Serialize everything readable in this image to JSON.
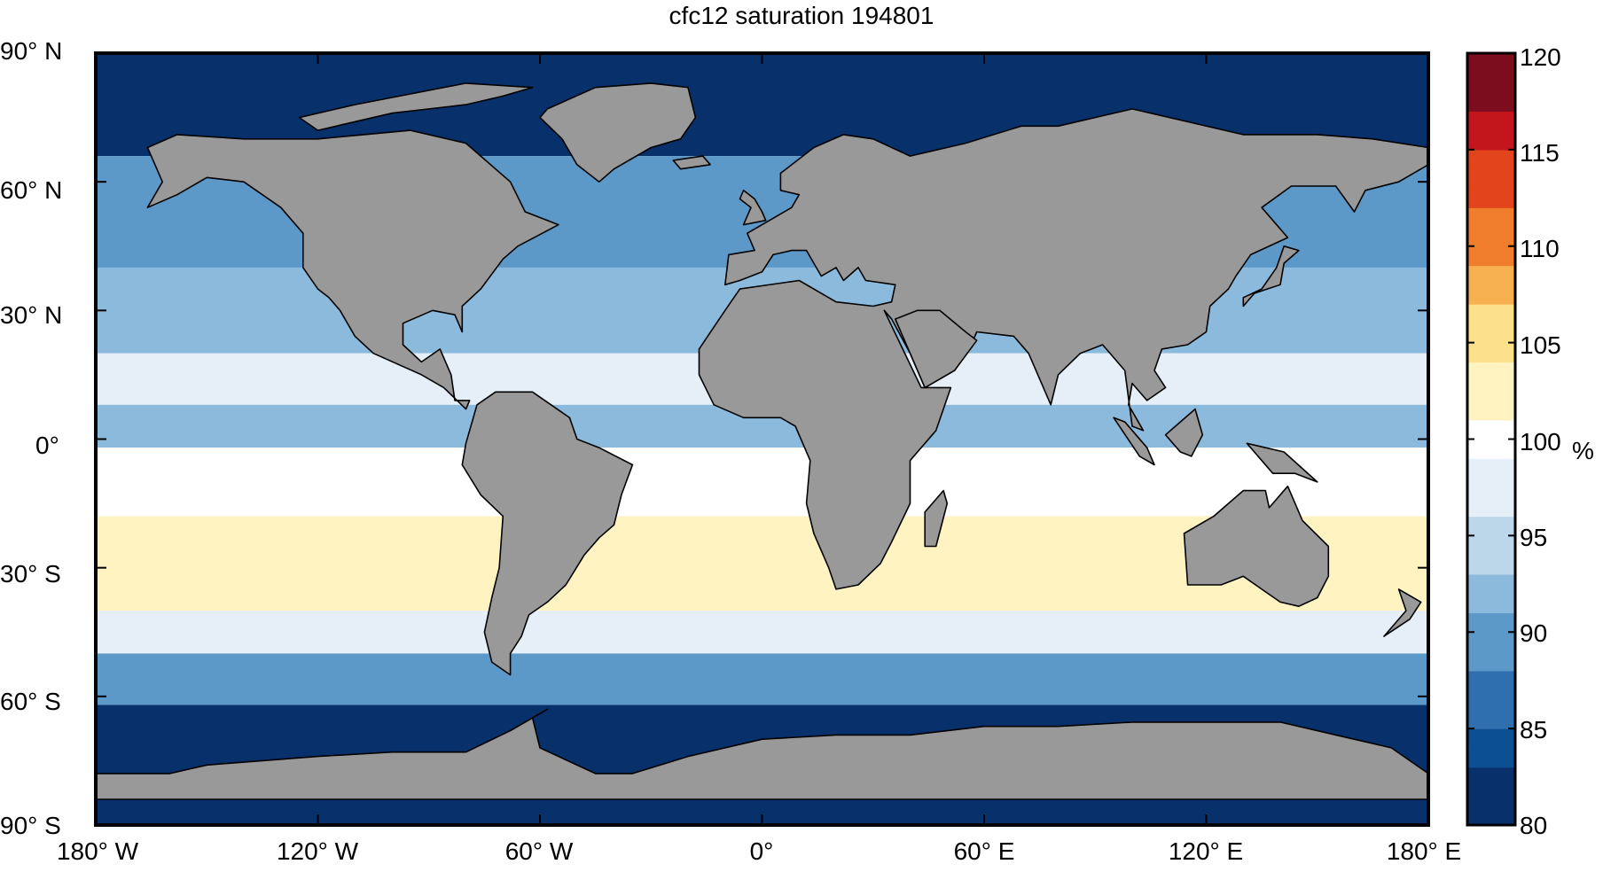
{
  "title": "cfc12 saturation 194801",
  "colorbar": {
    "min": 80,
    "max": 120,
    "step": 1,
    "tick_labels": [
      "120",
      "115",
      "110",
      "105",
      "100",
      "95",
      "90",
      "85",
      "80"
    ],
    "unit": "%",
    "colors_low_to_high": [
      "#08306b",
      "#0d4f93",
      "#2f6fb0",
      "#5c98c8",
      "#8cbadc",
      "#bcd6ea",
      "#e6eff7",
      "#ffffff",
      "#fff3c2",
      "#fde08a",
      "#f7b04f",
      "#ef7d2b",
      "#e2441b",
      "#c2151c",
      "#7b0d1e"
    ]
  },
  "axes": {
    "lat_labels": [
      "90° N",
      "60° N",
      "30° N",
      "0°",
      "30° S",
      "60° S",
      "90° S"
    ],
    "lon_labels": [
      "180° W",
      "120° W",
      "60° W",
      "0°",
      "60° E",
      "120° E",
      "180° E"
    ]
  },
  "map": {
    "land_color": "#999999",
    "ocean_bands": [
      {
        "lat_top": 90,
        "lat_bottom": 66,
        "value": 80
      },
      {
        "lat_top": 66,
        "lat_bottom": 40,
        "value": 90
      },
      {
        "lat_top": 40,
        "lat_bottom": 20,
        "value": 93
      },
      {
        "lat_top": 20,
        "lat_bottom": 8,
        "value": 98
      },
      {
        "lat_top": 8,
        "lat_bottom": -2,
        "value": 92
      },
      {
        "lat_top": -2,
        "lat_bottom": -18,
        "value": 99
      },
      {
        "lat_top": -18,
        "lat_bottom": -40,
        "value": 103
      },
      {
        "lat_top": -40,
        "lat_bottom": -50,
        "value": 96
      },
      {
        "lat_top": -50,
        "lat_bottom": -62,
        "value": 89
      },
      {
        "lat_top": -62,
        "lat_bottom": -90,
        "value": 80
      }
    ],
    "land": [
      {
        "name": "north-america",
        "lonlat": [
          [
            -166,
            68
          ],
          [
            -158,
            71
          ],
          [
            -140,
            70
          ],
          [
            -120,
            70
          ],
          [
            -95,
            72
          ],
          [
            -80,
            69
          ],
          [
            -68,
            60
          ],
          [
            -64,
            53
          ],
          [
            -55,
            50
          ],
          [
            -66,
            45
          ],
          [
            -70,
            42
          ],
          [
            -76,
            35
          ],
          [
            -81,
            31
          ],
          [
            -81,
            25
          ],
          [
            -83,
            29
          ],
          [
            -89,
            30
          ],
          [
            -97,
            27
          ],
          [
            -97,
            22
          ],
          [
            -92,
            18
          ],
          [
            -87,
            21
          ],
          [
            -84,
            15
          ],
          [
            -83,
            9
          ],
          [
            -79,
            9
          ],
          [
            -80,
            7
          ],
          [
            -86,
            12
          ],
          [
            -92,
            15
          ],
          [
            -105,
            20
          ],
          [
            -110,
            24
          ],
          [
            -114,
            30
          ],
          [
            -117,
            33
          ],
          [
            -120,
            35
          ],
          [
            -124,
            40
          ],
          [
            -124,
            48
          ],
          [
            -130,
            54
          ],
          [
            -140,
            60
          ],
          [
            -150,
            61
          ],
          [
            -158,
            57
          ],
          [
            -166,
            54
          ],
          [
            -162,
            60
          ],
          [
            -166,
            68
          ]
        ]
      },
      {
        "name": "greenland",
        "lonlat": [
          [
            -58,
            77
          ],
          [
            -45,
            82
          ],
          [
            -30,
            83
          ],
          [
            -20,
            82
          ],
          [
            -18,
            75
          ],
          [
            -22,
            70
          ],
          [
            -30,
            68
          ],
          [
            -40,
            63
          ],
          [
            -44,
            60
          ],
          [
            -50,
            64
          ],
          [
            -54,
            70
          ],
          [
            -60,
            75
          ],
          [
            -58,
            77
          ]
        ]
      },
      {
        "name": "south-america",
        "lonlat": [
          [
            -77,
            8
          ],
          [
            -72,
            11
          ],
          [
            -62,
            11
          ],
          [
            -52,
            5
          ],
          [
            -50,
            0
          ],
          [
            -44,
            -2
          ],
          [
            -35,
            -6
          ],
          [
            -38,
            -13
          ],
          [
            -40,
            -20
          ],
          [
            -44,
            -23
          ],
          [
            -48,
            -27
          ],
          [
            -53,
            -34
          ],
          [
            -58,
            -38
          ],
          [
            -63,
            -41
          ],
          [
            -65,
            -46
          ],
          [
            -68,
            -50
          ],
          [
            -68,
            -55
          ],
          [
            -73,
            -52
          ],
          [
            -75,
            -45
          ],
          [
            -73,
            -37
          ],
          [
            -71,
            -30
          ],
          [
            -70,
            -18
          ],
          [
            -76,
            -13
          ],
          [
            -81,
            -6
          ],
          [
            -80,
            -1
          ],
          [
            -77,
            8
          ]
        ]
      },
      {
        "name": "eurasia-africa",
        "lonlat": [
          [
            -10,
            36
          ],
          [
            -9,
            43
          ],
          [
            -2,
            44
          ],
          [
            -4,
            48
          ],
          [
            2,
            51
          ],
          [
            8,
            54
          ],
          [
            10,
            57
          ],
          [
            5,
            58
          ],
          [
            5,
            62
          ],
          [
            14,
            68
          ],
          [
            22,
            71
          ],
          [
            30,
            70
          ],
          [
            40,
            66
          ],
          [
            55,
            69
          ],
          [
            70,
            73
          ],
          [
            80,
            73
          ],
          [
            100,
            77
          ],
          [
            115,
            74
          ],
          [
            130,
            71
          ],
          [
            150,
            71
          ],
          [
            165,
            70
          ],
          [
            180,
            68
          ],
          [
            180,
            64
          ],
          [
            172,
            60
          ],
          [
            163,
            58
          ],
          [
            160,
            53
          ],
          [
            155,
            59
          ],
          [
            143,
            59
          ],
          [
            135,
            54
          ],
          [
            142,
            47
          ],
          [
            132,
            43
          ],
          [
            128,
            38
          ],
          [
            126,
            35
          ],
          [
            121,
            31
          ],
          [
            120,
            25
          ],
          [
            115,
            22
          ],
          [
            108,
            21
          ],
          [
            106,
            16
          ],
          [
            109,
            12
          ],
          [
            104,
            9
          ],
          [
            100,
            13
          ],
          [
            99,
            8
          ],
          [
            103,
            2
          ],
          [
            100,
            3
          ],
          [
            98,
            16
          ],
          [
            92,
            22
          ],
          [
            86,
            20
          ],
          [
            80,
            15
          ],
          [
            78,
            8
          ],
          [
            72,
            20
          ],
          [
            68,
            24
          ],
          [
            58,
            25
          ],
          [
            56,
            21
          ],
          [
            52,
            16
          ],
          [
            44,
            12
          ],
          [
            40,
            20
          ],
          [
            35,
            28
          ],
          [
            33,
            30
          ],
          [
            43,
            12
          ],
          [
            51,
            12
          ],
          [
            47,
            2
          ],
          [
            40,
            -5
          ],
          [
            40,
            -15
          ],
          [
            35,
            -24
          ],
          [
            32,
            -29
          ],
          [
            26,
            -34
          ],
          [
            20,
            -35
          ],
          [
            18,
            -30
          ],
          [
            14,
            -22
          ],
          [
            12,
            -15
          ],
          [
            13,
            -5
          ],
          [
            9,
            3
          ],
          [
            5,
            5
          ],
          [
            -5,
            5
          ],
          [
            -13,
            8
          ],
          [
            -17,
            15
          ],
          [
            -17,
            21
          ],
          [
            -10,
            30
          ],
          [
            -6,
            35
          ],
          [
            10,
            37
          ],
          [
            20,
            32
          ],
          [
            30,
            31
          ],
          [
            35,
            32
          ],
          [
            36,
            36
          ],
          [
            28,
            37
          ],
          [
            26,
            40
          ],
          [
            22,
            37
          ],
          [
            20,
            40
          ],
          [
            16,
            38
          ],
          [
            12,
            44
          ],
          [
            8,
            44
          ],
          [
            3,
            43
          ],
          [
            0,
            39
          ],
          [
            -6,
            37
          ],
          [
            -10,
            36
          ]
        ]
      },
      {
        "name": "arabian-sea-gap",
        "lonlat": [
          [
            42,
            30
          ],
          [
            48,
            30
          ],
          [
            55,
            25
          ],
          [
            58,
            23
          ],
          [
            52,
            16
          ],
          [
            44,
            12
          ],
          [
            40,
            20
          ],
          [
            36,
            28
          ],
          [
            42,
            30
          ]
        ]
      },
      {
        "name": "australia",
        "lonlat": [
          [
            114,
            -22
          ],
          [
            122,
            -18
          ],
          [
            130,
            -12
          ],
          [
            136,
            -12
          ],
          [
            137,
            -16
          ],
          [
            142,
            -11
          ],
          [
            146,
            -19
          ],
          [
            153,
            -25
          ],
          [
            153,
            -32
          ],
          [
            150,
            -37
          ],
          [
            145,
            -39
          ],
          [
            140,
            -38
          ],
          [
            135,
            -35
          ],
          [
            130,
            -32
          ],
          [
            124,
            -34
          ],
          [
            115,
            -34
          ],
          [
            114,
            -22
          ]
        ]
      },
      {
        "name": "antarctica",
        "lonlat": [
          [
            -180,
            -84
          ],
          [
            -180,
            -78
          ],
          [
            -160,
            -78
          ],
          [
            -150,
            -76
          ],
          [
            -120,
            -74
          ],
          [
            -100,
            -73
          ],
          [
            -80,
            -73
          ],
          [
            -68,
            -68
          ],
          [
            -58,
            -63
          ],
          [
            -62,
            -65
          ],
          [
            -60,
            -72
          ],
          [
            -45,
            -78
          ],
          [
            -35,
            -78
          ],
          [
            -20,
            -74
          ],
          [
            0,
            -70
          ],
          [
            20,
            -69
          ],
          [
            40,
            -69
          ],
          [
            60,
            -67
          ],
          [
            80,
            -67
          ],
          [
            100,
            -66
          ],
          [
            120,
            -66
          ],
          [
            140,
            -66
          ],
          [
            160,
            -70
          ],
          [
            170,
            -72
          ],
          [
            180,
            -78
          ],
          [
            180,
            -84
          ],
          [
            -180,
            -84
          ]
        ]
      },
      {
        "name": "madagascar",
        "lonlat": [
          [
            44,
            -25
          ],
          [
            47,
            -25
          ],
          [
            50,
            -15
          ],
          [
            49,
            -12
          ],
          [
            44,
            -17
          ],
          [
            44,
            -25
          ]
        ]
      },
      {
        "name": "borneo",
        "lonlat": [
          [
            109,
            1
          ],
          [
            113,
            -3
          ],
          [
            116,
            -4
          ],
          [
            119,
            1
          ],
          [
            117,
            7
          ],
          [
            113,
            4
          ],
          [
            109,
            1
          ]
        ]
      },
      {
        "name": "sumatra",
        "lonlat": [
          [
            95,
            5
          ],
          [
            98,
            4
          ],
          [
            104,
            -2
          ],
          [
            106,
            -6
          ],
          [
            102,
            -4
          ],
          [
            95,
            5
          ]
        ]
      },
      {
        "name": "new-guinea",
        "lonlat": [
          [
            131,
            -1
          ],
          [
            141,
            -3
          ],
          [
            150,
            -10
          ],
          [
            144,
            -8
          ],
          [
            138,
            -8
          ],
          [
            131,
            -1
          ]
        ]
      },
      {
        "name": "japan",
        "lonlat": [
          [
            130,
            31
          ],
          [
            133,
            34
          ],
          [
            140,
            36
          ],
          [
            141,
            41
          ],
          [
            145,
            44
          ],
          [
            141,
            45
          ],
          [
            139,
            40
          ],
          [
            135,
            35
          ],
          [
            130,
            33
          ],
          [
            130,
            31
          ]
        ]
      },
      {
        "name": "great-britain",
        "lonlat": [
          [
            -5,
            50
          ],
          [
            1,
            51
          ],
          [
            0,
            53
          ],
          [
            -2,
            56
          ],
          [
            -5,
            58
          ],
          [
            -6,
            56
          ],
          [
            -3,
            54
          ],
          [
            -5,
            50
          ]
        ]
      },
      {
        "name": "new-zealand",
        "lonlat": [
          [
            172,
            -35
          ],
          [
            178,
            -38
          ],
          [
            175,
            -42
          ],
          [
            168,
            -46
          ],
          [
            170,
            -44
          ],
          [
            174,
            -40
          ],
          [
            172,
            -35
          ]
        ]
      },
      {
        "name": "canadian-islands",
        "lonlat": [
          [
            -120,
            72
          ],
          [
            -100,
            76
          ],
          [
            -80,
            78
          ],
          [
            -70,
            80
          ],
          [
            -62,
            82
          ],
          [
            -80,
            83
          ],
          [
            -110,
            78
          ],
          [
            -125,
            75
          ],
          [
            -120,
            72
          ]
        ]
      },
      {
        "name": "iceland",
        "lonlat": [
          [
            -24,
            65
          ],
          [
            -16,
            66
          ],
          [
            -14,
            64
          ],
          [
            -22,
            63
          ],
          [
            -24,
            65
          ]
        ]
      }
    ]
  }
}
